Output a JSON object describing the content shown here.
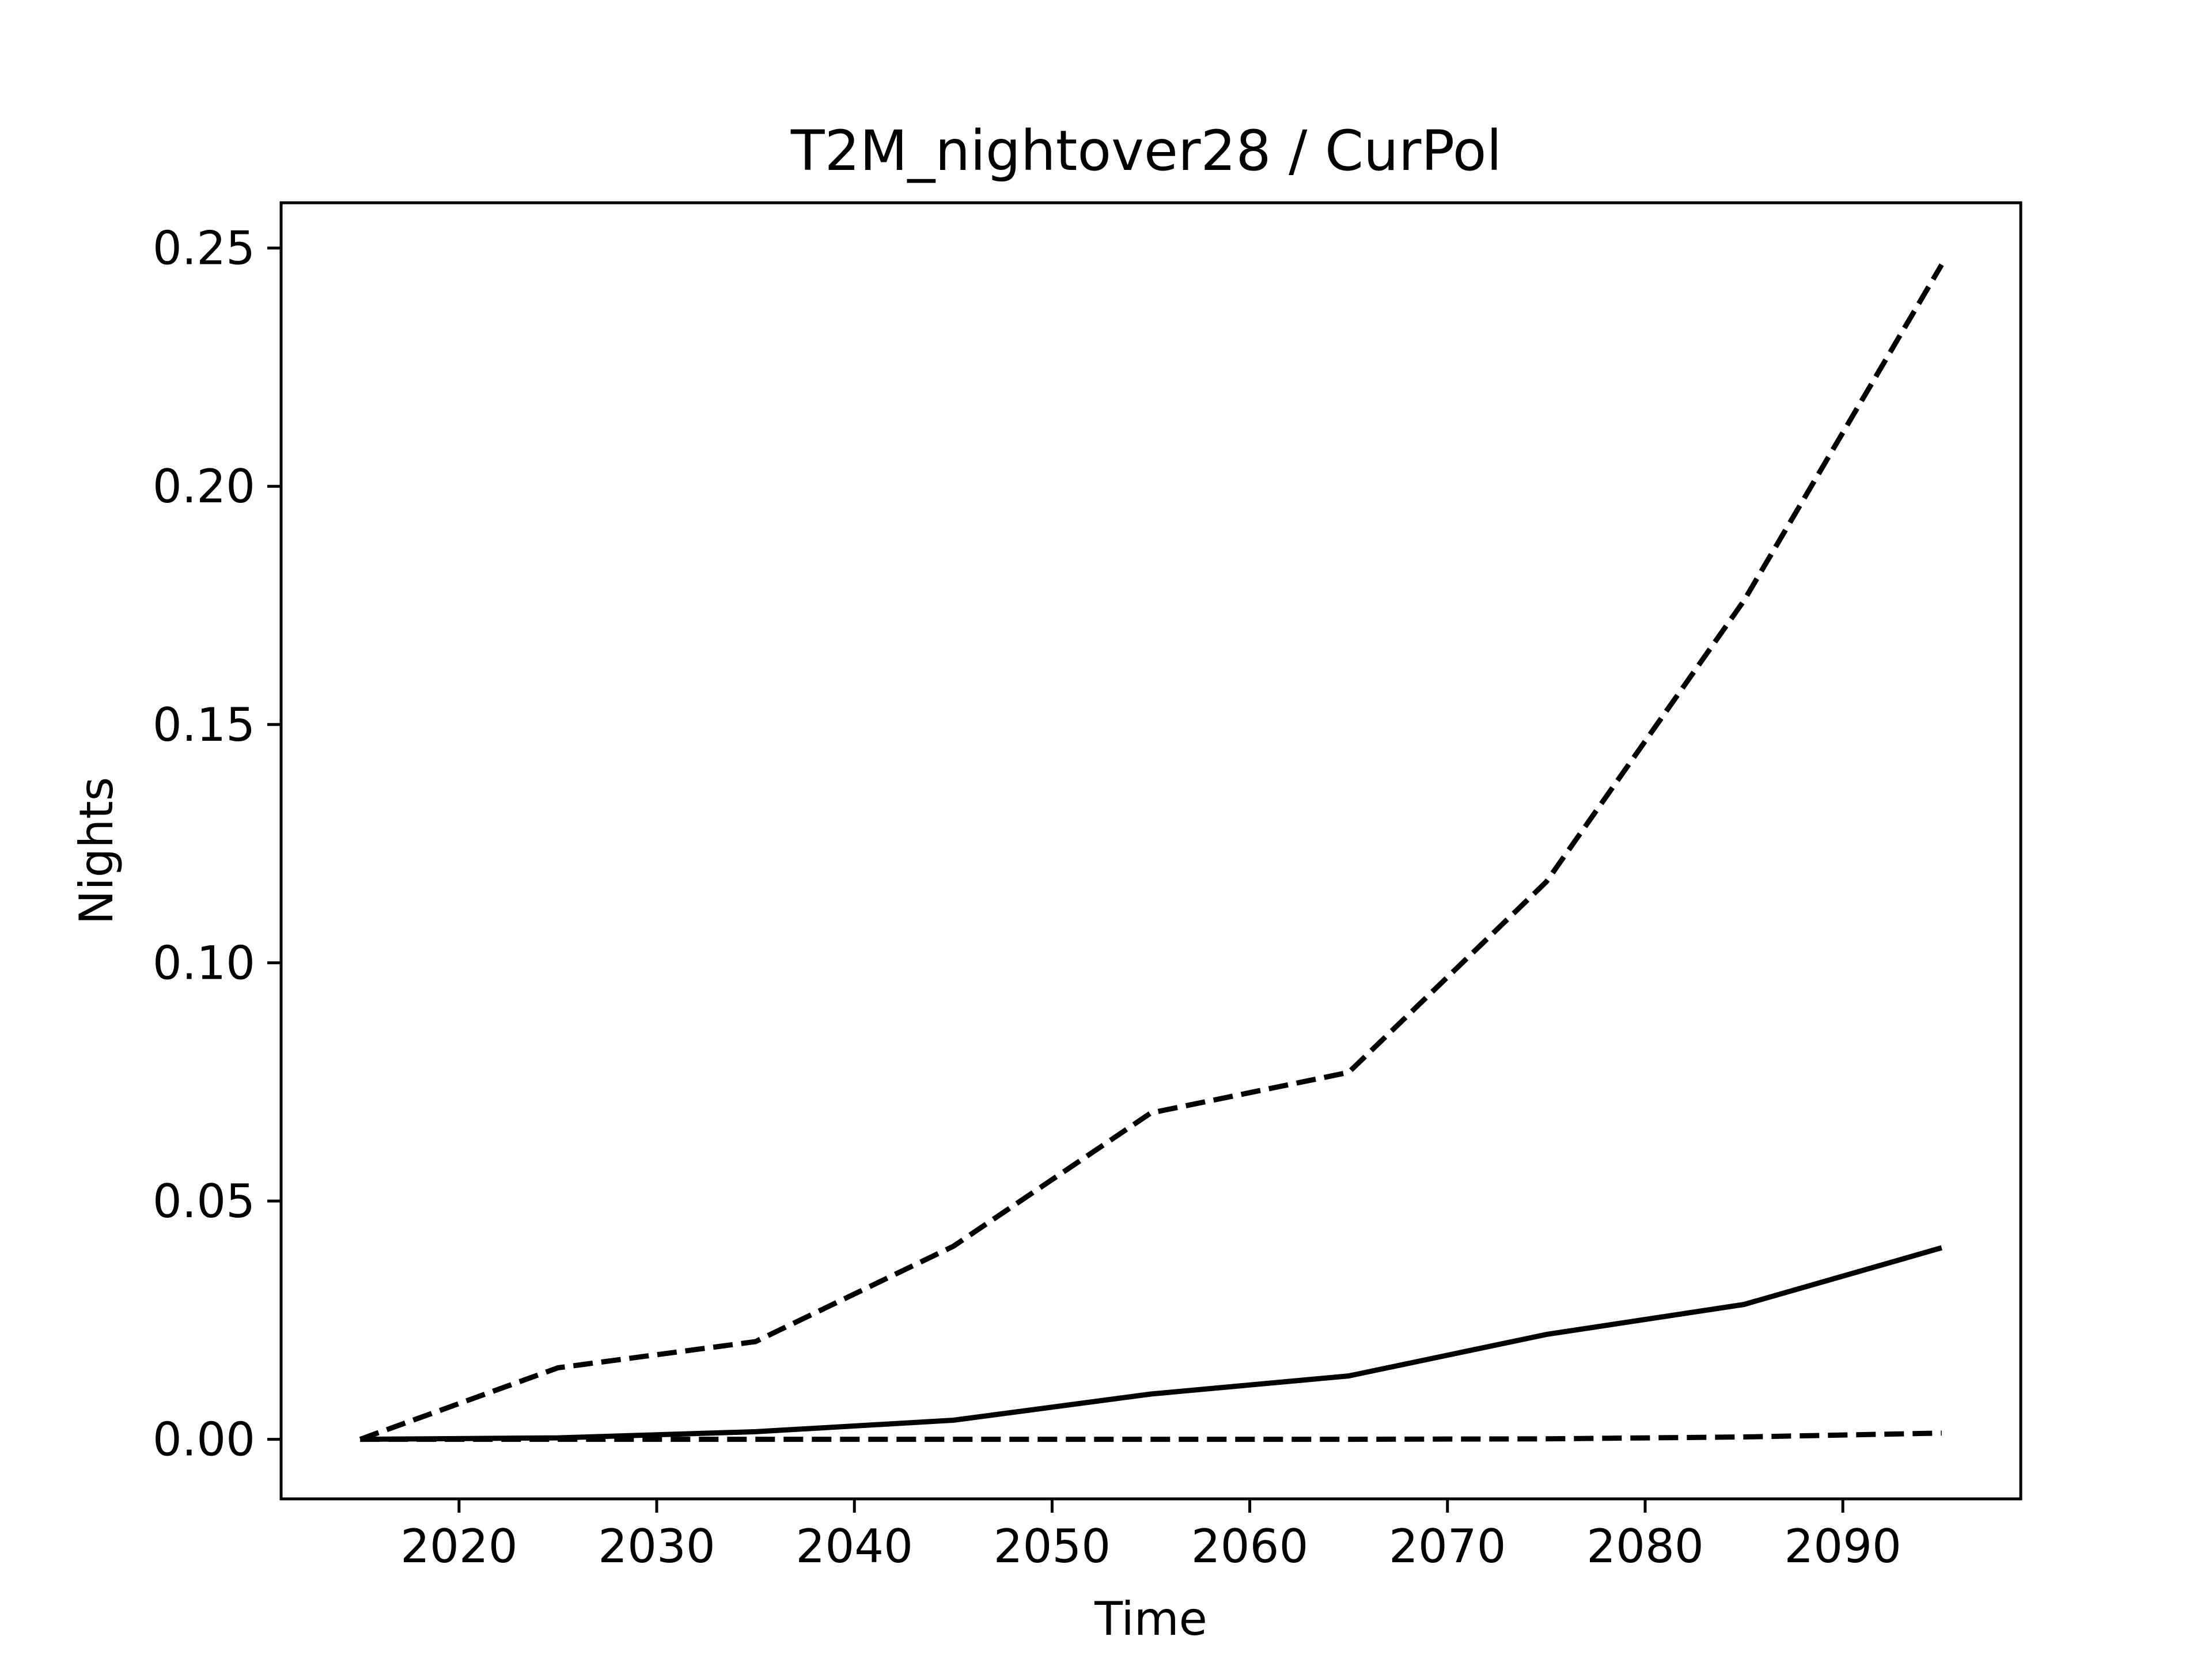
{
  "chart_data": {
    "type": "line",
    "title": "T2M_nightover28 / CurPol",
    "xlabel": "Time",
    "ylabel": "Nights",
    "xlim": [
      2011,
      2099
    ],
    "ylim": [
      -0.0125,
      0.2595
    ],
    "x_ticks": [
      2020,
      2030,
      2040,
      2050,
      2060,
      2070,
      2080,
      2090
    ],
    "y_ticks": [
      0.0,
      0.05,
      0.1,
      0.15,
      0.2,
      0.25
    ],
    "y_tick_labels": [
      "0.00",
      "0.05",
      "0.10",
      "0.15",
      "0.20",
      "0.25"
    ],
    "x": [
      2015,
      2025,
      2035,
      2045,
      2055,
      2065,
      2075,
      2085,
      2095
    ],
    "grid": false,
    "legend": "none",
    "series": [
      {
        "style": "dashed",
        "color": "#000000",
        "values": [
          0.0,
          0.015,
          0.0205,
          0.0405,
          0.0685,
          0.077,
          0.117,
          0.176,
          0.2465
        ]
      },
      {
        "style": "solid",
        "color": "#000000",
        "values": [
          0.0,
          0.0003,
          0.0016,
          0.004,
          0.0095,
          0.0133,
          0.022,
          0.0283,
          0.0402
        ]
      },
      {
        "style": "dashed",
        "color": "#000000",
        "values": [
          0.0,
          0.0,
          0.0,
          0.0,
          0.0,
          0.0,
          0.0001,
          0.0005,
          0.0013
        ]
      }
    ]
  }
}
